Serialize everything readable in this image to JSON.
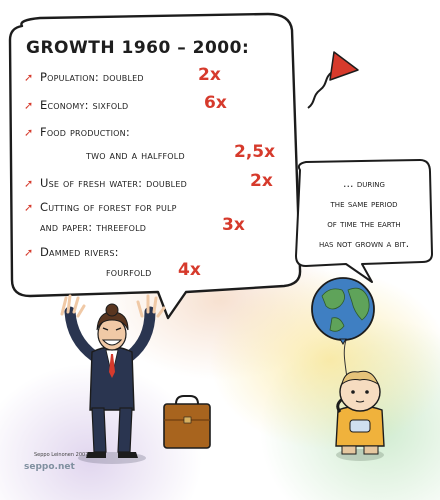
{
  "bubble": {
    "title": "GROWTH 1960 – 2000:",
    "items": [
      {
        "label": "Population: doubled",
        "multiplier": "2x"
      },
      {
        "label": "Economy: sixfold",
        "multiplier": "6x"
      },
      {
        "label": "Food production:",
        "label2": "two and a halffold",
        "multiplier": "2,5x"
      },
      {
        "label": "Use of fresh water: doubled",
        "multiplier": "2x"
      },
      {
        "label": "Cutting of forest for pulp",
        "label2": "and paper: threefold",
        "multiplier": "3x"
      },
      {
        "label": "Dammed rivers:",
        "label2": "fourfold",
        "multiplier": "4x"
      }
    ]
  },
  "child_bubble": {
    "lines": [
      "… during",
      "the same period",
      "of time the earth",
      "has not grown a bit."
    ]
  },
  "signature": "Seppo Leinonen 2007",
  "brand": "seppo.net",
  "colors": {
    "accent_red": "#d63a2c",
    "suit": "#2a3550",
    "globe_ocean": "#3f7fc2",
    "globe_land": "#5fa35a",
    "briefcase": "#a8641e",
    "child_shirt": "#f0b23c"
  }
}
